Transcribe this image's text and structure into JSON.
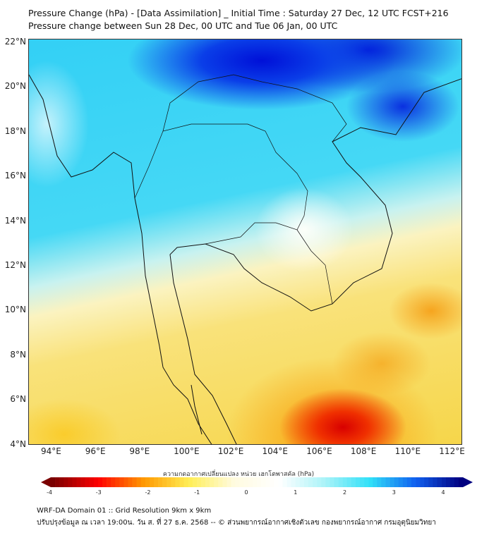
{
  "title": {
    "line1": "Pressure Change (hPa) - [Data Assimilation] _ Initial Time : Saturday 27 Dec, 12 UTC FCST+216",
    "line2": "Pressure change between Sun 28 Dec, 00 UTC and Tue 06 Jan, 00 UTC"
  },
  "lat_ticks": [
    "22°N",
    "20°N",
    "18°N",
    "16°N",
    "14°N",
    "12°N",
    "10°N",
    "8°N",
    "6°N",
    "4°N"
  ],
  "lon_ticks": [
    "94°E",
    "96°E",
    "98°E",
    "100°E",
    "102°E",
    "104°E",
    "106°E",
    "108°E",
    "110°E",
    "112°E"
  ],
  "colorbar": {
    "label": "ความกดอากาศเปลี่ยนแปลง หน่วย เฮกโตพาสคัล (hPa)",
    "ticks": [
      "-4",
      "-3",
      "-2",
      "-1",
      "0",
      "1",
      "2",
      "3",
      "4"
    ],
    "range": [
      -4,
      4
    ],
    "colors": [
      "#7a0000",
      "#ff0000",
      "#ff9900",
      "#ffee55",
      "#fffbe0",
      "#ffffff",
      "#aaf3f8",
      "#30e0f8",
      "#1060f0",
      "#000080"
    ]
  },
  "footer": {
    "line1": "WRF-DA Domain 01 :: Grid Resolution 9km x 9km",
    "line2": "ปรับปรุงข้อมูล ณ เวลา 19:00น. วัน ส. ที่ 27 ธ.ค. 2568 -- © ส่วนพยากรณ์อากาศเชิงตัวเลข กองพยากรณ์อากาศ กรมอุตุนิยมวิทยา"
  }
}
